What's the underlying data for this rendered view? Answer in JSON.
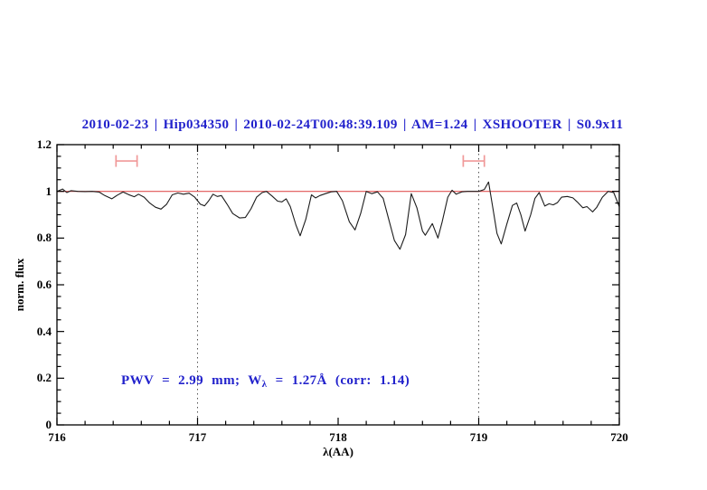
{
  "title": {
    "text": "2010-02-23 | Hip034350 | 2010-02-24T00:48:39.109 | AM=1.24 | XSHOOTER | S0.9x11",
    "color": "#2222cc"
  },
  "annotation": {
    "pre": "PWV = 2.99 mm; W",
    "sub": "λ",
    "post": " = 1.27Å (corr: 1.14)",
    "text": "PWV = 2.99 mm; W_λ = 1.27Å (corr: 1.14)",
    "color": "#2222cc"
  },
  "chart_data": {
    "type": "line",
    "title": "2010-02-23 | Hip034350 | 2010-02-24T00:48:39.109 | AM=1.24 | XSHOOTER | S0.9x11",
    "xlabel": "λ(AA)",
    "ylabel": "norm. flux",
    "xlim": [
      716,
      720
    ],
    "ylim": [
      0,
      1.2
    ],
    "grid": false,
    "legend": "none",
    "x_ticks": [
      716,
      717,
      718,
      719,
      720
    ],
    "x_tick_labels": [
      "716",
      "717",
      "718",
      "719",
      "720"
    ],
    "x_minor_step": 0.2,
    "x_major_step": 1,
    "y_ticks": [
      0,
      0.2,
      0.4,
      0.6,
      0.8,
      1.0,
      1.2
    ],
    "y_tick_labels": [
      "0",
      "0.2",
      "0.4",
      "0.6",
      "0.8",
      "1",
      "1.2"
    ],
    "y_minor_step": 0.05,
    "y_major_step": 0.2,
    "horizontal_lines": [
      {
        "y": 1.0,
        "color": "#e05555",
        "name": "continuum"
      }
    ],
    "vertical_dotted_lines": [
      {
        "x": 717
      },
      {
        "x": 719
      }
    ],
    "interval_markers": [
      {
        "x_min": 716.42,
        "x_max": 716.57,
        "y": 1.13,
        "color": "#f09999"
      },
      {
        "x_min": 718.89,
        "x_max": 719.04,
        "y": 1.13,
        "color": "#f09999"
      }
    ],
    "series": [
      {
        "name": "normalized spectrum",
        "color": "#1c1c1c",
        "x": [
          716.0,
          716.04,
          716.07,
          716.1,
          716.15,
          716.2,
          716.25,
          716.3,
          716.34,
          716.39,
          716.43,
          716.47,
          716.51,
          716.55,
          716.58,
          716.62,
          716.66,
          716.7,
          716.74,
          716.78,
          716.82,
          716.86,
          716.9,
          716.94,
          716.98,
          717.02,
          717.05,
          717.08,
          717.11,
          717.14,
          717.17,
          717.21,
          717.25,
          717.3,
          717.34,
          717.38,
          717.42,
          717.46,
          717.49,
          717.53,
          717.57,
          717.6,
          717.63,
          717.66,
          717.7,
          717.73,
          717.77,
          717.81,
          717.84,
          717.87,
          717.91,
          717.95,
          717.99,
          718.03,
          718.08,
          718.12,
          718.16,
          718.2,
          718.24,
          718.28,
          718.32,
          718.36,
          718.4,
          718.44,
          718.48,
          718.52,
          718.56,
          718.6,
          718.62,
          718.67,
          718.71,
          718.74,
          718.78,
          718.81,
          718.84,
          718.88,
          718.92,
          718.96,
          719.0,
          719.04,
          719.07,
          719.1,
          719.13,
          719.16,
          719.2,
          719.24,
          719.27,
          719.3,
          719.33,
          719.37,
          719.4,
          719.43,
          719.47,
          719.5,
          719.53,
          719.56,
          719.59,
          719.63,
          719.67,
          719.7,
          719.74,
          719.77,
          719.81,
          719.84,
          719.88,
          719.92,
          719.96,
          720.0
        ],
        "y": [
          1.0,
          1.01,
          0.995,
          1.003,
          1.0,
          0.999,
          1.0,
          0.997,
          0.982,
          0.968,
          0.984,
          0.997,
          0.986,
          0.977,
          0.988,
          0.975,
          0.95,
          0.932,
          0.924,
          0.945,
          0.985,
          0.993,
          0.988,
          0.992,
          0.975,
          0.945,
          0.938,
          0.96,
          0.988,
          0.978,
          0.982,
          0.945,
          0.905,
          0.886,
          0.888,
          0.925,
          0.975,
          0.995,
          1.0,
          0.98,
          0.958,
          0.955,
          0.968,
          0.935,
          0.855,
          0.81,
          0.88,
          0.985,
          0.972,
          0.982,
          0.99,
          0.998,
          1.0,
          0.96,
          0.87,
          0.835,
          0.905,
          1.0,
          0.99,
          0.998,
          0.97,
          0.88,
          0.79,
          0.752,
          0.815,
          0.99,
          0.93,
          0.83,
          0.812,
          0.862,
          0.8,
          0.87,
          0.975,
          1.005,
          0.988,
          0.998,
          1.0,
          1.0,
          1.0,
          1.008,
          1.04,
          0.93,
          0.82,
          0.775,
          0.86,
          0.94,
          0.95,
          0.9,
          0.83,
          0.9,
          0.97,
          0.995,
          0.937,
          0.947,
          0.942,
          0.952,
          0.975,
          0.978,
          0.972,
          0.955,
          0.93,
          0.935,
          0.912,
          0.932,
          0.975,
          1.0,
          0.995,
          0.935
        ]
      }
    ]
  }
}
